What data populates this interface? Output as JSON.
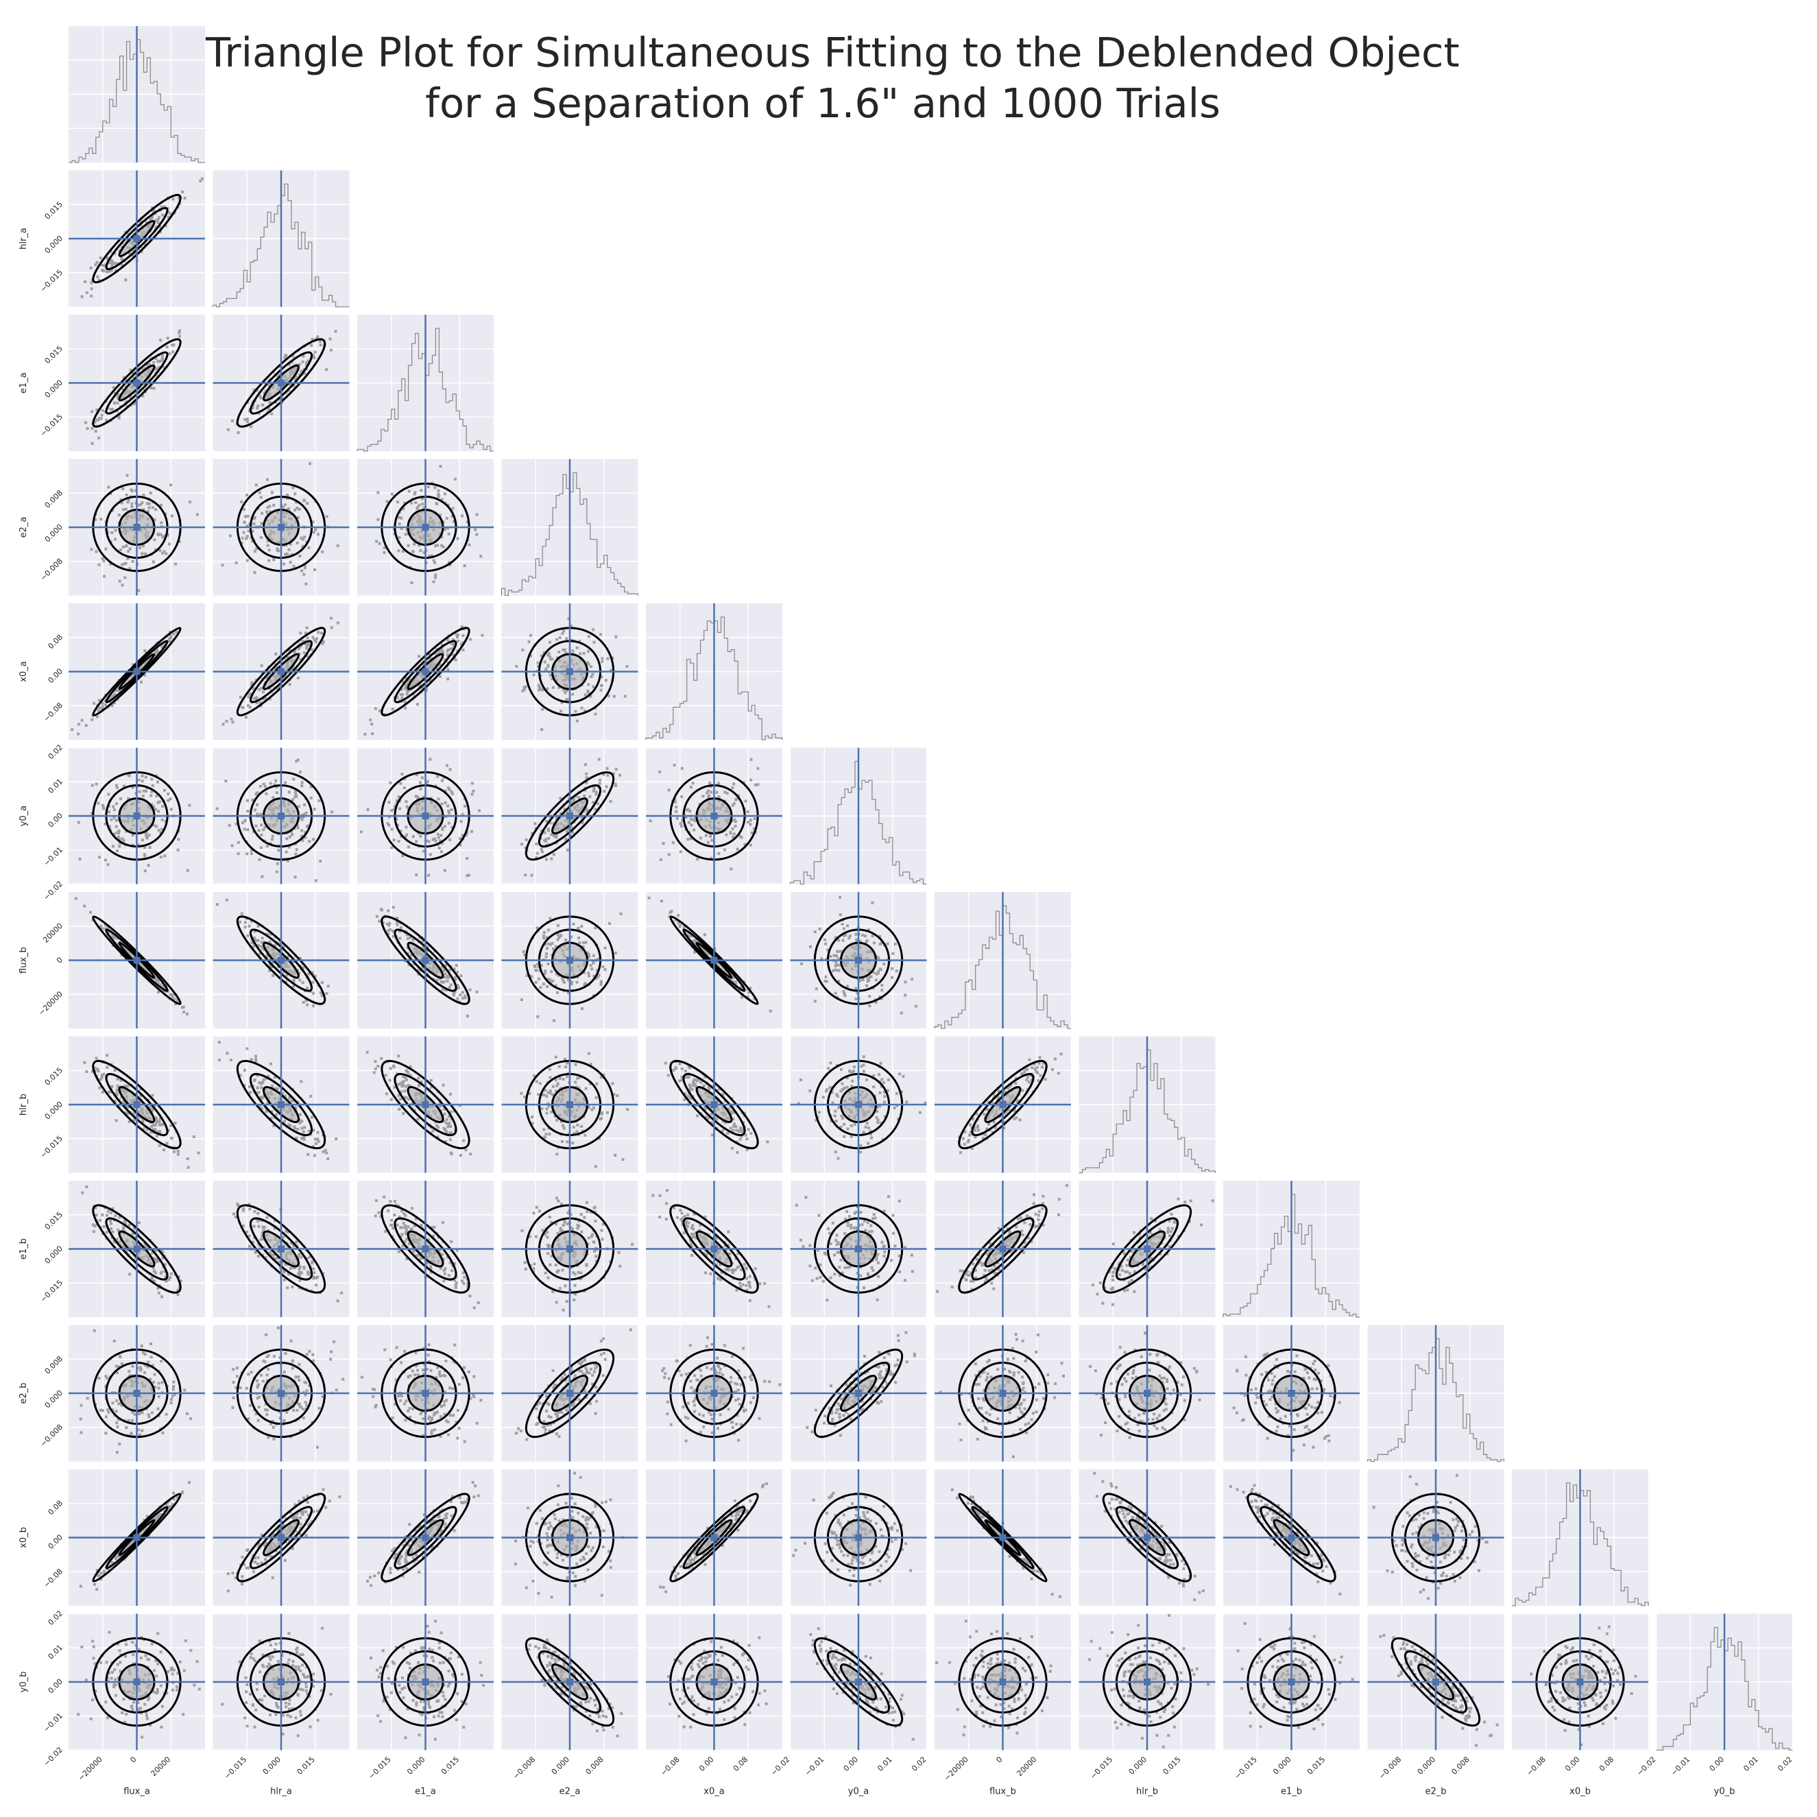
{
  "title": {
    "line1": "Triangle Plot for Simultaneous Fitting to the Deblended Object",
    "line2": "for a Separation of 1.6\" and 1000 Trials"
  },
  "colors": {
    "panel_bg": "#eaeaf2",
    "grid": "#ffffff",
    "truth_line": "#4c72b0",
    "contour": "#000000",
    "fill": "#b0b0b0",
    "scatter": "#a0a0a0",
    "hist": "#8c8c8c",
    "text": "#262626"
  },
  "chart_data": {
    "type": "corner",
    "n_trials": 1000,
    "truths": [
      0,
      0,
      0,
      0,
      0,
      0,
      0,
      0,
      0,
      0,
      0,
      0
    ],
    "parameters": [
      {
        "name": "flux_a",
        "label": "flux_a",
        "range": [
          -40000,
          40000
        ],
        "ticks": [
          -20000,
          0,
          20000
        ],
        "tick_labels": [
          "−20000",
          "0",
          "20000"
        ]
      },
      {
        "name": "hlr_a",
        "label": "hlr_a",
        "range": [
          -0.03,
          0.03
        ],
        "ticks": [
          -0.015,
          0,
          0.015
        ],
        "tick_labels": [
          "−0.015",
          "0.000",
          "0.015"
        ]
      },
      {
        "name": "e1_a",
        "label": "e1_a",
        "range": [
          -0.03,
          0.03
        ],
        "ticks": [
          -0.015,
          0,
          0.015
        ],
        "tick_labels": [
          "−0.015",
          "0.000",
          "0.015"
        ]
      },
      {
        "name": "e2_a",
        "label": "e2_a",
        "range": [
          -0.016,
          0.016
        ],
        "ticks": [
          -0.008,
          0,
          0.008
        ],
        "tick_labels": [
          "−0.008",
          "0.000",
          "0.008"
        ]
      },
      {
        "name": "x0_a",
        "label": "x0_a",
        "range": [
          -0.16,
          0.16
        ],
        "ticks": [
          -0.08,
          0,
          0.08
        ],
        "tick_labels": [
          "−0.08",
          "0.00",
          "0.08"
        ]
      },
      {
        "name": "y0_a",
        "label": "y0_a",
        "range": [
          -0.02,
          0.02
        ],
        "ticks": [
          -0.02,
          -0.01,
          0,
          0.01,
          0.02
        ],
        "tick_labels": [
          "−0.02",
          "−0.01",
          "0.00",
          "0.01",
          "0.02"
        ]
      },
      {
        "name": "flux_b",
        "label": "flux_b",
        "range": [
          -40000,
          40000
        ],
        "ticks": [
          -20000,
          0,
          20000
        ],
        "tick_labels": [
          "−20000",
          "0",
          "20000"
        ]
      },
      {
        "name": "hlr_b",
        "label": "hlr_b",
        "range": [
          -0.03,
          0.03
        ],
        "ticks": [
          -0.015,
          0,
          0.015
        ],
        "tick_labels": [
          "−0.015",
          "0.000",
          "0.015"
        ]
      },
      {
        "name": "e1_b",
        "label": "e1_b",
        "range": [
          -0.03,
          0.03
        ],
        "ticks": [
          -0.015,
          0,
          0.015
        ],
        "tick_labels": [
          "−0.015",
          "0.000",
          "0.015"
        ]
      },
      {
        "name": "e2_b",
        "label": "e2_b",
        "range": [
          -0.016,
          0.016
        ],
        "ticks": [
          -0.008,
          0,
          0.008
        ],
        "tick_labels": [
          "−0.008",
          "0.000",
          "0.008"
        ]
      },
      {
        "name": "x0_b",
        "label": "x0_b",
        "range": [
          -0.16,
          0.16
        ],
        "ticks": [
          -0.08,
          0,
          0.08
        ],
        "tick_labels": [
          "−0.08",
          "0.00",
          "0.08"
        ]
      },
      {
        "name": "y0_b",
        "label": "y0_b",
        "range": [
          -0.02,
          0.02
        ],
        "ticks": [
          -0.02,
          -0.01,
          0,
          0.01,
          0.02
        ],
        "tick_labels": [
          "−0.02",
          "−0.01",
          "0.00",
          "0.01",
          "0.02"
        ]
      }
    ],
    "correlations": [
      {
        "pair": [
          "hlr_a",
          "flux_a"
        ],
        "r": 0.93
      },
      {
        "pair": [
          "e1_a",
          "flux_a"
        ],
        "r": 0.93
      },
      {
        "pair": [
          "e1_a",
          "hlr_a"
        ],
        "r": 0.9
      },
      {
        "pair": [
          "x0_a",
          "flux_a"
        ],
        "r": 0.98
      },
      {
        "pair": [
          "x0_a",
          "hlr_a"
        ],
        "r": 0.93
      },
      {
        "pair": [
          "x0_a",
          "e1_a"
        ],
        "r": 0.93
      },
      {
        "pair": [
          "y0_a",
          "e2_a"
        ],
        "r": 0.85
      },
      {
        "pair": [
          "flux_b",
          "flux_a"
        ],
        "r": -0.99
      },
      {
        "pair": [
          "flux_b",
          "hlr_a"
        ],
        "r": -0.9
      },
      {
        "pair": [
          "flux_b",
          "e1_a"
        ],
        "r": -0.9
      },
      {
        "pair": [
          "flux_b",
          "x0_a"
        ],
        "r": -0.98
      },
      {
        "pair": [
          "hlr_b",
          "flux_a"
        ],
        "r": -0.88
      },
      {
        "pair": [
          "hlr_b",
          "hlr_a"
        ],
        "r": -0.82
      },
      {
        "pair": [
          "hlr_b",
          "e1_a"
        ],
        "r": -0.82
      },
      {
        "pair": [
          "hlr_b",
          "x0_a"
        ],
        "r": -0.86
      },
      {
        "pair": [
          "hlr_b",
          "flux_b"
        ],
        "r": 0.88
      },
      {
        "pair": [
          "e1_b",
          "flux_a"
        ],
        "r": -0.88
      },
      {
        "pair": [
          "e1_b",
          "hlr_a"
        ],
        "r": -0.82
      },
      {
        "pair": [
          "e1_b",
          "e1_a"
        ],
        "r": -0.82
      },
      {
        "pair": [
          "e1_b",
          "x0_a"
        ],
        "r": -0.86
      },
      {
        "pair": [
          "e1_b",
          "flux_b"
        ],
        "r": 0.88
      },
      {
        "pair": [
          "e1_b",
          "hlr_b"
        ],
        "r": 0.85
      },
      {
        "pair": [
          "e2_b",
          "e2_a"
        ],
        "r": 0.8
      },
      {
        "pair": [
          "e2_b",
          "y0_a"
        ],
        "r": 0.85
      },
      {
        "pair": [
          "x0_b",
          "flux_a"
        ],
        "r": 0.98
      },
      {
        "pair": [
          "x0_b",
          "hlr_a"
        ],
        "r": 0.9
      },
      {
        "pair": [
          "x0_b",
          "e1_a"
        ],
        "r": 0.9
      },
      {
        "pair": [
          "x0_b",
          "x0_a"
        ],
        "r": 0.95
      },
      {
        "pair": [
          "x0_b",
          "flux_b"
        ],
        "r": -0.98
      },
      {
        "pair": [
          "x0_b",
          "hlr_b"
        ],
        "r": -0.88
      },
      {
        "pair": [
          "x0_b",
          "e1_b"
        ],
        "r": -0.9
      },
      {
        "pair": [
          "y0_b",
          "e2_a"
        ],
        "r": -0.85
      },
      {
        "pair": [
          "y0_b",
          "y0_a"
        ],
        "r": -0.85
      },
      {
        "pair": [
          "y0_b",
          "e2_b"
        ],
        "r": -0.85
      }
    ],
    "grid": true
  }
}
